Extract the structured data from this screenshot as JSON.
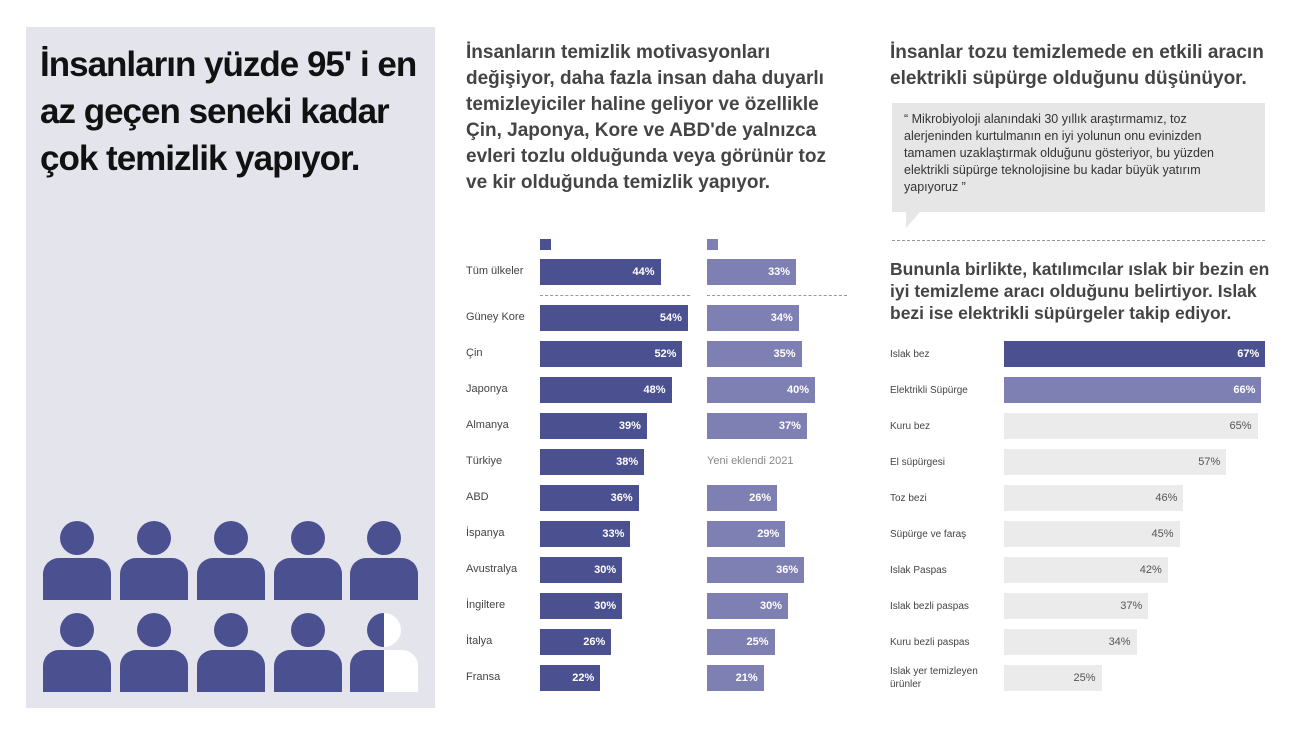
{
  "left": {
    "title": "İnsanların yüzde 95' i en az geçen seneki kadar çok temizlik yapıyor.",
    "people_total": 10,
    "people_filled": 9.5
  },
  "middle": {
    "heading": "İnsanların temizlik motivasyonları değişiyor, daha fazla insan daha duyarlı temizleyiciler haline geliyor ve özellikle Çin, Japonya, Kore ve ABD'de yalnızca evleri tozlu olduğunda veya görünür toz ve kir olduğunda temizlik yapıyor.",
    "note": "Yeni eklendi 2021"
  },
  "right": {
    "heading": "İnsanlar tozu temizlemede en etkili aracın elektrikli süpürge olduğunu düşünüyor.",
    "quote": "“ Mikrobiyoloji alanındaki 30 yıllık araştırmamız, toz alerjeninden kurtulmanın en iyi yolunun onu evinizden tamamen uzaklaştırmak olduğunu gösteriyor, bu yüzden elektrikli süpürge teknolojisine bu kadar büyük yatırım yapıyoruz ”",
    "subheading": "Bununla birlikte, katılımcılar ıslak bir bezin en iyi temizleme aracı olduğunu belirtiyor. Islak bezi ise elektrikli süpürgeler takip ediyor."
  },
  "colors": {
    "dark": "#4b5190",
    "light": "#7e80b3",
    "grey": "#ebebeb"
  },
  "chart_data": [
    {
      "type": "bar",
      "orientation": "horizontal",
      "categories": [
        "Tüm ülkeler",
        "Güney Kore",
        "Çin",
        "Japonya",
        "Almanya",
        "Türkiye",
        "ABD",
        "İspanya",
        "Avustralya",
        "İngiltere",
        "İtalya",
        "Fransa"
      ],
      "series": [
        {
          "name": "",
          "values": [
            44,
            54,
            52,
            48,
            39,
            38,
            36,
            33,
            30,
            30,
            26,
            22
          ]
        },
        {
          "name": "",
          "values": [
            33,
            34,
            35,
            40,
            37,
            null,
            26,
            29,
            36,
            30,
            25,
            21
          ]
        }
      ],
      "unit": "%"
    },
    {
      "type": "bar",
      "orientation": "horizontal",
      "categories": [
        "Islak bez",
        "Elektrikli Süpürge",
        "Kuru bez",
        "El süpürgesi",
        "Toz bezi",
        "Süpürge ve faraş",
        "Islak Paspas",
        "Islak bezli paspas",
        "Kuru bezli paspas",
        "Islak yer temizleyen ürünler"
      ],
      "values": [
        67,
        66,
        65,
        57,
        46,
        45,
        42,
        37,
        34,
        25
      ],
      "unit": "%"
    }
  ]
}
